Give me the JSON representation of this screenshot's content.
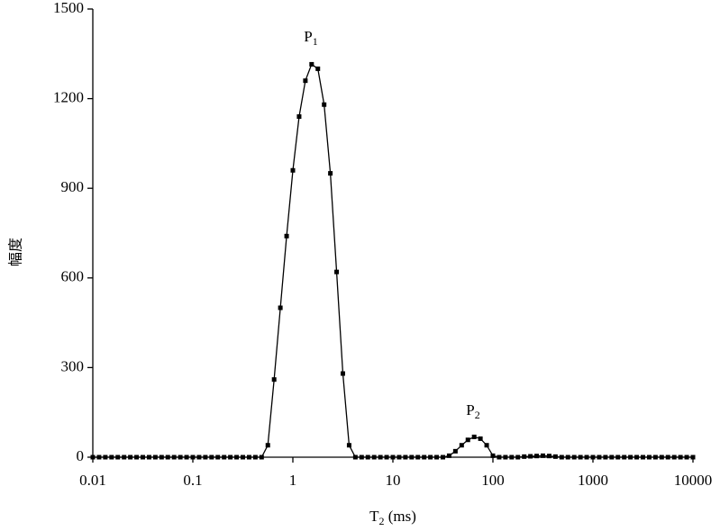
{
  "chart_data": {
    "type": "line",
    "log_x": true,
    "color": "#000000",
    "x_label": {
      "text": "T",
      "subscript": "2",
      "suffix": " (ms)"
    },
    "y_label": "幅度",
    "annotations": [
      {
        "text": "P",
        "subscript": "1"
      },
      {
        "text": "P",
        "subscript": "2"
      }
    ],
    "x": [
      0.01,
      0.01155,
      0.01334,
      0.0154,
      0.01778,
      0.02054,
      0.02371,
      0.02738,
      0.03162,
      0.03652,
      0.04217,
      0.0487,
      0.05623,
      0.06494,
      0.07499,
      0.0866,
      0.1,
      0.1155,
      0.1334,
      0.154,
      0.1778,
      0.2054,
      0.2371,
      0.2738,
      0.3162,
      0.3652,
      0.4217,
      0.487,
      0.5623,
      0.6494,
      0.7499,
      0.866,
      1,
      1.155,
      1.334,
      1.54,
      1.778,
      2.054,
      2.371,
      2.738,
      3.162,
      3.652,
      4.217,
      4.87,
      5.623,
      6.494,
      7.499,
      8.66,
      10,
      11.55,
      13.34,
      15.4,
      17.78,
      20.54,
      23.71,
      27.38,
      31.62,
      36.52,
      42.17,
      48.7,
      56.23,
      64.94,
      74.99,
      86.6,
      100,
      115.5,
      133.4,
      154,
      177.8,
      205.4,
      237.1,
      273.8,
      316.2,
      365.2,
      421.7,
      487,
      562.3,
      649.4,
      749.9,
      866,
      1000,
      1155,
      1334,
      1540,
      1778,
      2054,
      2371,
      2738,
      3162,
      3652,
      4217,
      4870,
      5623,
      6494,
      7499,
      8660,
      10000
    ],
    "values": [
      0,
      0,
      0,
      0,
      0,
      0,
      0,
      0,
      0,
      0,
      0,
      0,
      0,
      0,
      0,
      0,
      0,
      0,
      0,
      0,
      0,
      0,
      0,
      0,
      0,
      0,
      0,
      0,
      40,
      260,
      500,
      740,
      960,
      1140,
      1260,
      1315,
      1300,
      1180,
      950,
      620,
      280,
      40,
      0,
      0,
      0,
      0,
      0,
      0,
      0,
      0,
      0,
      0,
      0,
      0,
      0,
      0,
      0,
      5,
      20,
      40,
      58,
      68,
      62,
      40,
      5,
      0,
      0,
      0,
      0,
      2,
      3,
      4,
      5,
      4,
      2,
      0,
      0,
      0,
      0,
      0,
      0,
      0,
      0,
      0,
      0,
      0,
      0,
      0,
      0,
      0,
      0,
      0,
      0,
      0,
      0,
      0,
      0
    ],
    "xlim": [
      0.01,
      10000
    ],
    "xticks": [
      0.01,
      0.1,
      1,
      10,
      100,
      1000,
      10000
    ],
    "ylim": [
      0,
      1500
    ],
    "yticks": [
      0,
      300,
      600,
      900,
      1200,
      1500
    ]
  }
}
